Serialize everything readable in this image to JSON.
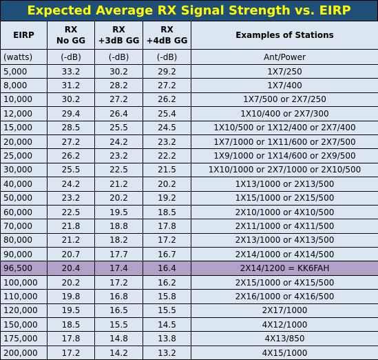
{
  "title": "Expected Average RX Signal Strength vs. EIRP",
  "headers": {
    "eirp": "EIRP",
    "rx1": [
      "RX",
      "No GG"
    ],
    "rx2": [
      "RX",
      "+3dB GG"
    ],
    "rx3": [
      "RX",
      "+4dB GG"
    ],
    "examples": "Examples of Stations"
  },
  "units": [
    "(watts)",
    "(-dB)",
    "(-dB)",
    "(-dB)",
    "Ant/Power"
  ],
  "rows": [
    {
      "eirp": "5,000",
      "rx1": "33.2",
      "rx2": "30.2",
      "rx3": "29.2",
      "ex": "1X7/250"
    },
    {
      "eirp": "8,000",
      "rx1": "31.2",
      "rx2": "28.2",
      "rx3": "27.2",
      "ex": "1X7/400"
    },
    {
      "eirp": "10,000",
      "rx1": "30.2",
      "rx2": "27.2",
      "rx3": "26.2",
      "ex": "1X7/500 or 2X7/250"
    },
    {
      "eirp": "12,000",
      "rx1": "29.4",
      "rx2": "26.4",
      "rx3": "25.4",
      "ex": "1X10/400 or 2X7/300"
    },
    {
      "eirp": "15,000",
      "rx1": "28.5",
      "rx2": "25.5",
      "rx3": "24.5",
      "ex": "1X10/500 or 1X12/400 or 2X7/400"
    },
    {
      "eirp": "20,000",
      "rx1": "27.2",
      "rx2": "24.2",
      "rx3": "23.2",
      "ex": "1X7/1000 or 1X11/600 or 2X7/500"
    },
    {
      "eirp": "25,000",
      "rx1": "26.2",
      "rx2": "23.2",
      "rx3": "22.2",
      "ex": "1X9/1000 or 1X14/600 or 2X9/500"
    },
    {
      "eirp": "30,000",
      "rx1": "25.5",
      "rx2": "22.5",
      "rx3": "21.5",
      "ex": "1X10/1000 or 2X7/1000 or 2X10/500"
    },
    {
      "eirp": "40,000",
      "rx1": "24.2",
      "rx2": "21.2",
      "rx3": "20.2",
      "ex": "1X13/1000 or 2X13/500"
    },
    {
      "eirp": "50,000",
      "rx1": "23.2",
      "rx2": "20.2",
      "rx3": "19.2",
      "ex": "1X15/1000 or 2X15/500"
    },
    {
      "eirp": "60,000",
      "rx1": "22.5",
      "rx2": "19.5",
      "rx3": "18.5",
      "ex": "2X10/1000 or 4X10/500"
    },
    {
      "eirp": "70,000",
      "rx1": "21.8",
      "rx2": "18.8",
      "rx3": "17.8",
      "ex": "2X11/1000 or 4X11/500"
    },
    {
      "eirp": "80,000",
      "rx1": "21.2",
      "rx2": "18.2",
      "rx3": "17.2",
      "ex": "2X13/1000 or 4X13/500"
    },
    {
      "eirp": "90,000",
      "rx1": "20.7",
      "rx2": "17.7",
      "rx3": "16.7",
      "ex": "2X14/1000 or 4X14/500"
    },
    {
      "eirp": "96,500",
      "rx1": "20.4",
      "rx2": "17.4",
      "rx3": "16.4",
      "ex": "2X14/1200 = KK6FAH",
      "highlight": true
    },
    {
      "eirp": "100,000",
      "rx1": "20.2",
      "rx2": "17.2",
      "rx3": "16.2",
      "ex": "2X15/1000 or 4X15/500"
    },
    {
      "eirp": "110,000",
      "rx1": "19.8",
      "rx2": "16.8",
      "rx3": "15.8",
      "ex": "2X16/1000 or 4X16/500"
    },
    {
      "eirp": "120,000",
      "rx1": "19.5",
      "rx2": "16.5",
      "rx3": "15.5",
      "ex": "2X17/1000"
    },
    {
      "eirp": "150,000",
      "rx1": "18.5",
      "rx2": "15.5",
      "rx3": "14.5",
      "ex": "4X12/1000"
    },
    {
      "eirp": "175,000",
      "rx1": "17.8",
      "rx2": "14.8",
      "rx3": "13.8",
      "ex": "4X13/850"
    },
    {
      "eirp": "200,000",
      "rx1": "17.2",
      "rx2": "14.2",
      "rx3": "13.2",
      "ex": "4X15/1000"
    }
  ],
  "colors": {
    "title_bg": "#1f4e79",
    "title_text": "#ffff00",
    "cell_bg": "#dce6f1",
    "highlight_bg": "#b1a0c7"
  }
}
